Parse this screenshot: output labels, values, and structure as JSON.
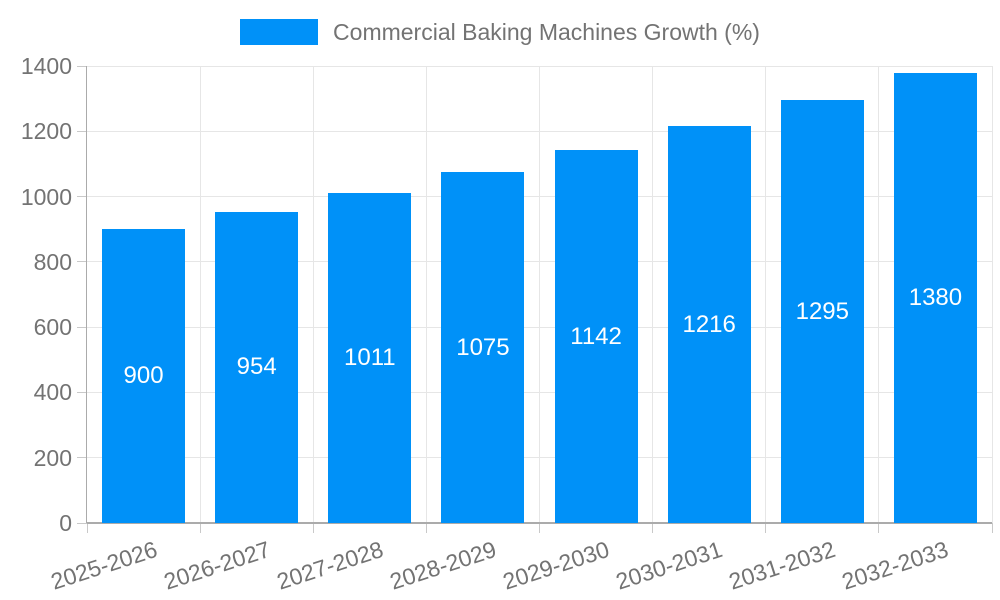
{
  "chart_data": {
    "type": "bar",
    "title": "Commercial Baking Machines Growth (%)",
    "categories": [
      "2025-2026",
      "2026-2027",
      "2027-2028",
      "2028-2029",
      "2029-2030",
      "2030-2031",
      "2031-2032",
      "2032-2033"
    ],
    "series": [
      {
        "name": "Commercial Baking Machines Growth (%)",
        "values": [
          900,
          954,
          1011,
          1075,
          1142,
          1216,
          1295,
          1380
        ]
      }
    ],
    "value_labels": [
      "900",
      "954",
      "1011",
      "1075",
      "1142",
      "1216",
      "1295",
      "1380"
    ],
    "xlabel": "",
    "ylabel": "",
    "ylim": [
      0,
      1400
    ],
    "yticks": [
      0,
      200,
      400,
      600,
      800,
      1000,
      1200,
      1400
    ],
    "grid": "on",
    "legend_position": "top-center",
    "colors": {
      "bar": "#0091F8",
      "value_label": "#FFFFFF",
      "axis_text": "#737373",
      "grid_line": "#E6E6E6",
      "tick_mark": "#C9C9C9",
      "axis_line": "#ABABAB",
      "background": "#FFFFFF"
    }
  }
}
